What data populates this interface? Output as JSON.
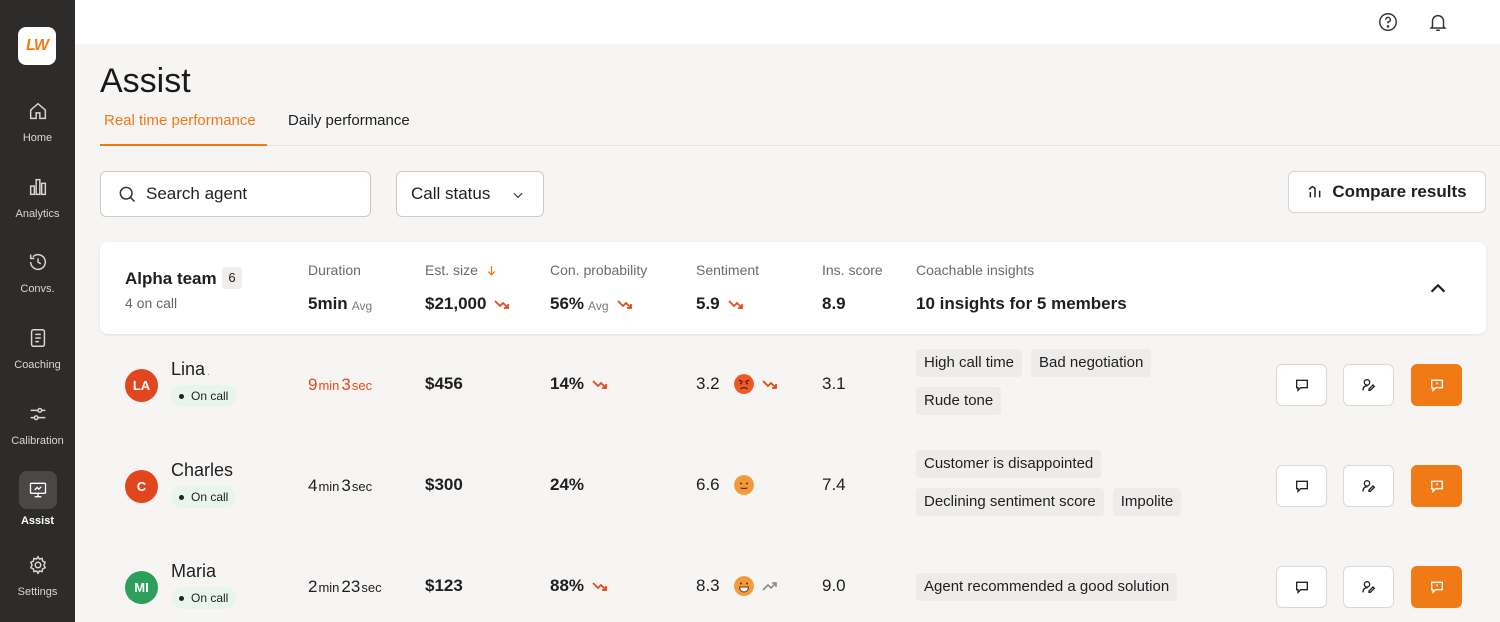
{
  "colors": {
    "accent": "#f07a16",
    "sidebar": "#2e2c2b",
    "danger": "#e64a19",
    "online": "#e8f5ec"
  },
  "logo": {
    "text": "LW"
  },
  "sidebar": {
    "items": [
      {
        "label": "Home",
        "icon": "home-icon"
      },
      {
        "label": "Analytics",
        "icon": "bar-chart-icon"
      },
      {
        "label": "Convs.",
        "icon": "history-icon"
      },
      {
        "label": "Coaching",
        "icon": "document-icon"
      },
      {
        "label": "Calibration",
        "icon": "sliders-icon"
      },
      {
        "label": "Assist",
        "icon": "presentation-icon",
        "active": true
      },
      {
        "label": "Settings",
        "icon": "gear-icon"
      }
    ]
  },
  "header": {
    "title": "Assist",
    "tabs": [
      {
        "label": "Real time performance",
        "active": true
      },
      {
        "label": "Daily performance",
        "active": false
      }
    ]
  },
  "filters": {
    "search_placeholder": "Search agent",
    "call_status": "Call status",
    "compare_label": "Compare results"
  },
  "team": {
    "name": "Alpha team",
    "count": "6",
    "sub": "4 on call",
    "columns": {
      "duration": {
        "header": "Duration",
        "value": "5min",
        "suffix": "Avg"
      },
      "size": {
        "header": "Est. size",
        "value": "$21,000"
      },
      "probability": {
        "header": "Con. probability",
        "value": "56%",
        "suffix": "Avg"
      },
      "sentiment": {
        "header": "Sentiment",
        "value": "5.9"
      },
      "score": {
        "header": "Ins. score",
        "value": "8.9"
      },
      "insights": {
        "header": "Coachable insights",
        "value": "10 insights for 5 members"
      }
    }
  },
  "agents": [
    {
      "initials": "LA",
      "name": "Lina",
      "dot": ".",
      "status": "On call",
      "avatar_color": "#e2461f",
      "dur_min": "9",
      "dur_min_unit": "min",
      "dur_sec": "3",
      "dur_sec_unit": "sec",
      "dur_alert": true,
      "size": "$456",
      "probability": "14%",
      "prob_trend": "down",
      "sentiment": "3.2",
      "sent_emoji": "angry-face-icon",
      "sent_trend": "down",
      "score": "3.1",
      "insights": [
        "High call time",
        "Bad  negotiation",
        "Rude tone"
      ]
    },
    {
      "initials": "C",
      "name": "Charles",
      "dot": "",
      "status": "On call",
      "avatar_color": "#e2461f",
      "dur_min": "4",
      "dur_min_unit": "min",
      "dur_sec": "3",
      "dur_sec_unit": "sec",
      "dur_alert": false,
      "size": "$300",
      "probability": "24%",
      "prob_trend": "none",
      "sentiment": "6.6",
      "sent_emoji": "neutral-face-icon",
      "sent_trend": "none",
      "score": "7.4",
      "insights": [
        "Customer is disappointed",
        "Declining sentiment score",
        "Impolite"
      ]
    },
    {
      "initials": "MI",
      "name": "Maria",
      "dot": "",
      "status": "On call",
      "avatar_color": "#2e9e5b",
      "dur_min": "2",
      "dur_min_unit": "min",
      "dur_sec": "23",
      "dur_sec_unit": "sec",
      "dur_alert": false,
      "size": "$123",
      "probability": "88%",
      "prob_trend": "down",
      "sentiment": "8.3",
      "sent_emoji": "grinning-face-icon",
      "sent_trend": "up",
      "score": "9.0",
      "insights": [
        "Agent recommended a good solution"
      ]
    }
  ]
}
